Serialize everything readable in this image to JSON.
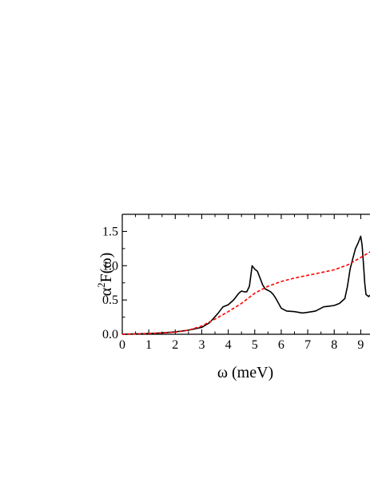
{
  "chart_data": {
    "type": "line",
    "xlabel": "ω (meV)",
    "ylabel_base": "α",
    "ylabel_sup": "2",
    "ylabel_rest": "F(ω)",
    "xlim": [
      0,
      9.35
    ],
    "ylim": [
      0,
      1.75
    ],
    "xticks": [
      0,
      1,
      2,
      3,
      4,
      5,
      6,
      7,
      8,
      9
    ],
    "xtick_labels": [
      "0",
      "1",
      "2",
      "3",
      "4",
      "5",
      "6",
      "7",
      "8",
      "9"
    ],
    "yticks": [
      0,
      0.5,
      1.0,
      1.5
    ],
    "ytick_labels": [
      "0.0",
      "0.5",
      "1.0",
      "1.5"
    ],
    "grid": false,
    "legend": "none",
    "series": [
      {
        "color": "#000000",
        "style": "solid",
        "points": [
          [
            0,
            0.0
          ],
          [
            0.5,
            0.005
          ],
          [
            1.0,
            0.01
          ],
          [
            1.5,
            0.02
          ],
          [
            2.0,
            0.035
          ],
          [
            2.5,
            0.06
          ],
          [
            3.0,
            0.1
          ],
          [
            3.3,
            0.17
          ],
          [
            3.6,
            0.3
          ],
          [
            3.8,
            0.4
          ],
          [
            4.0,
            0.43
          ],
          [
            4.2,
            0.5
          ],
          [
            4.4,
            0.6
          ],
          [
            4.5,
            0.63
          ],
          [
            4.6,
            0.62
          ],
          [
            4.7,
            0.62
          ],
          [
            4.8,
            0.7
          ],
          [
            4.85,
            0.85
          ],
          [
            4.9,
            1.0
          ],
          [
            5.0,
            0.95
          ],
          [
            5.1,
            0.92
          ],
          [
            5.2,
            0.82
          ],
          [
            5.3,
            0.72
          ],
          [
            5.4,
            0.66
          ],
          [
            5.5,
            0.64
          ],
          [
            5.6,
            0.62
          ],
          [
            5.7,
            0.58
          ],
          [
            5.8,
            0.52
          ],
          [
            5.9,
            0.45
          ],
          [
            6.0,
            0.38
          ],
          [
            6.2,
            0.34
          ],
          [
            6.5,
            0.33
          ],
          [
            6.8,
            0.31
          ],
          [
            7.0,
            0.32
          ],
          [
            7.3,
            0.34
          ],
          [
            7.6,
            0.4
          ],
          [
            7.8,
            0.41
          ],
          [
            8.0,
            0.42
          ],
          [
            8.2,
            0.45
          ],
          [
            8.4,
            0.52
          ],
          [
            8.5,
            0.7
          ],
          [
            8.6,
            0.95
          ],
          [
            8.7,
            1.1
          ],
          [
            8.8,
            1.25
          ],
          [
            8.9,
            1.33
          ],
          [
            9.0,
            1.43
          ],
          [
            9.05,
            1.3
          ],
          [
            9.1,
            1.05
          ],
          [
            9.15,
            0.75
          ],
          [
            9.2,
            0.58
          ],
          [
            9.3,
            0.55
          ],
          [
            9.35,
            0.57
          ]
        ]
      },
      {
        "color": "#ff0000",
        "style": "dashed",
        "points": [
          [
            0,
            0.0
          ],
          [
            1.0,
            0.01
          ],
          [
            2.0,
            0.03
          ],
          [
            2.5,
            0.06
          ],
          [
            3.0,
            0.12
          ],
          [
            3.5,
            0.22
          ],
          [
            4.0,
            0.33
          ],
          [
            4.5,
            0.45
          ],
          [
            5.0,
            0.6
          ],
          [
            5.5,
            0.7
          ],
          [
            6.0,
            0.77
          ],
          [
            6.5,
            0.82
          ],
          [
            7.0,
            0.86
          ],
          [
            7.5,
            0.9
          ],
          [
            8.0,
            0.94
          ],
          [
            8.5,
            1.01
          ],
          [
            9.0,
            1.12
          ],
          [
            9.35,
            1.2
          ]
        ]
      }
    ]
  }
}
